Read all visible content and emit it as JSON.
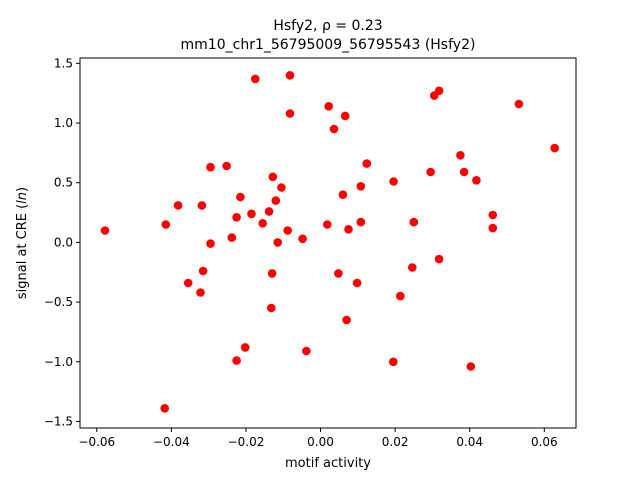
{
  "chart_data": {
    "type": "scatter",
    "title_line1": "Hsfy2, ρ = 0.23",
    "title_line2": "mm10_chr1_56795009_56795543 (Hsfy2)",
    "xlabel": "motif activity",
    "ylabel": "signal at CRE (ln)",
    "xlim": [
      -0.0645,
      0.0685
    ],
    "ylim": [
      -1.555,
      1.545
    ],
    "xticks": [
      -0.06,
      -0.04,
      -0.02,
      0.0,
      0.02,
      0.04,
      0.06
    ],
    "xtick_labels": [
      "−0.06",
      "−0.04",
      "−0.02",
      "0.00",
      "0.02",
      "0.04",
      "0.06"
    ],
    "yticks": [
      -1.5,
      -1.0,
      -0.5,
      0.0,
      0.5,
      1.0,
      1.5
    ],
    "ytick_labels": [
      "−1.5",
      "−1.0",
      "−0.5",
      "0.0",
      "0.5",
      "1.0",
      "1.5"
    ],
    "grid": false,
    "marker_color": "#ff0000",
    "points": [
      [
        -0.0578,
        0.1
      ],
      [
        -0.0415,
        0.15
      ],
      [
        -0.0418,
        -1.39
      ],
      [
        -0.0382,
        0.31
      ],
      [
        -0.0355,
        -0.34
      ],
      [
        -0.0318,
        0.31
      ],
      [
        -0.0315,
        -0.24
      ],
      [
        -0.0322,
        -0.42
      ],
      [
        -0.0295,
        -0.01
      ],
      [
        -0.0295,
        0.63
      ],
      [
        -0.0252,
        0.64
      ],
      [
        -0.0238,
        0.04
      ],
      [
        -0.0225,
        0.21
      ],
      [
        -0.0225,
        -0.99
      ],
      [
        -0.0215,
        0.38
      ],
      [
        -0.0202,
        -0.88
      ],
      [
        -0.0185,
        0.24
      ],
      [
        -0.0175,
        1.37
      ],
      [
        -0.0155,
        0.16
      ],
      [
        -0.0138,
        0.26
      ],
      [
        -0.0128,
        0.55
      ],
      [
        -0.013,
        -0.26
      ],
      [
        -0.0132,
        -0.55
      ],
      [
        -0.012,
        0.35
      ],
      [
        -0.0115,
        0.0
      ],
      [
        -0.0105,
        0.46
      ],
      [
        -0.0088,
        0.1
      ],
      [
        -0.0082,
        1.08
      ],
      [
        -0.0082,
        1.4
      ],
      [
        -0.0048,
        0.03
      ],
      [
        -0.0038,
        -0.91
      ],
      [
        0.0018,
        0.15
      ],
      [
        0.0022,
        1.14
      ],
      [
        0.0036,
        0.95
      ],
      [
        0.0048,
        -0.26
      ],
      [
        0.006,
        0.4
      ],
      [
        0.0066,
        1.06
      ],
      [
        0.007,
        -0.65
      ],
      [
        0.0075,
        0.11
      ],
      [
        0.0098,
        -0.34
      ],
      [
        0.0108,
        0.47
      ],
      [
        0.0108,
        0.17
      ],
      [
        0.0124,
        0.66
      ],
      [
        0.0196,
        0.51
      ],
      [
        0.0195,
        -1.0
      ],
      [
        0.0214,
        -0.45
      ],
      [
        0.0246,
        -0.21
      ],
      [
        0.025,
        0.17
      ],
      [
        0.0295,
        0.59
      ],
      [
        0.0305,
        1.23
      ],
      [
        0.0318,
        1.27
      ],
      [
        0.0318,
        -0.14
      ],
      [
        0.0375,
        0.73
      ],
      [
        0.0385,
        0.59
      ],
      [
        0.0403,
        -1.04
      ],
      [
        0.0418,
        0.52
      ],
      [
        0.0462,
        0.23
      ],
      [
        0.0462,
        0.12
      ],
      [
        0.0532,
        1.16
      ],
      [
        0.0628,
        0.79
      ]
    ]
  }
}
